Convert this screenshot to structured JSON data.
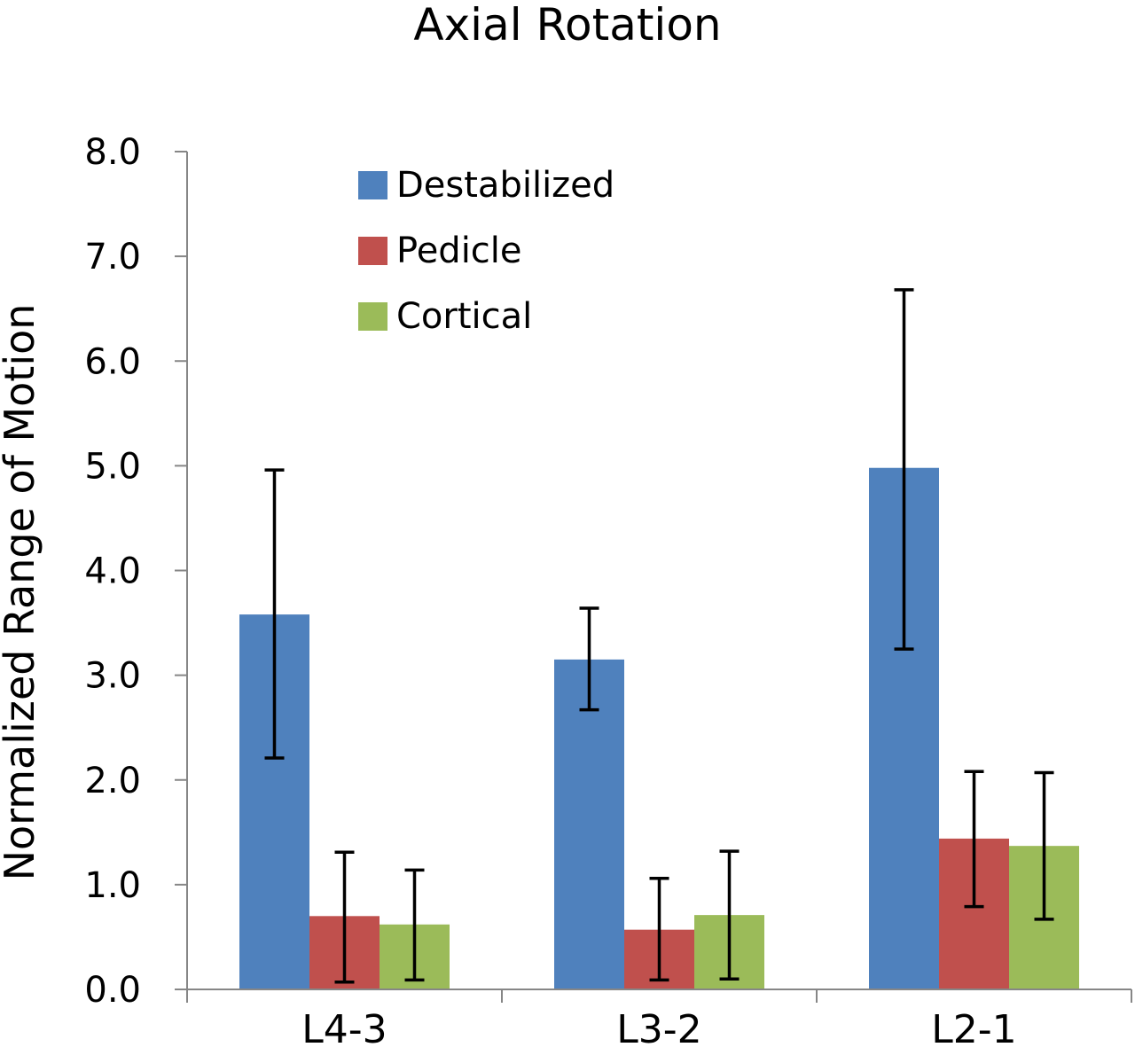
{
  "chart_data": {
    "type": "bar",
    "title": "Axial Rotation",
    "xlabel": "",
    "ylabel": "Normalized Range of Motion",
    "ylim": [
      0,
      8
    ],
    "yticks": [
      "0.0",
      "1.0",
      "2.0",
      "3.0",
      "4.0",
      "5.0",
      "6.0",
      "7.0",
      "8.0"
    ],
    "categories": [
      "L4-3",
      "L3-2",
      "L2-1"
    ],
    "series": [
      {
        "name": "Destabilized",
        "color": "#4F81BD",
        "values": [
          3.58,
          3.15,
          4.98
        ],
        "error_low": [
          2.21,
          2.67,
          3.25
        ],
        "error_high": [
          4.96,
          3.64,
          6.68
        ]
      },
      {
        "name": "Pedicle",
        "color": "#C0504D",
        "values": [
          0.7,
          0.57,
          1.44
        ],
        "error_low": [
          0.07,
          0.09,
          0.79
        ],
        "error_high": [
          1.31,
          1.06,
          2.08
        ]
      },
      {
        "name": "Cortical",
        "color": "#9BBB59",
        "values": [
          0.62,
          0.71,
          1.37
        ],
        "error_low": [
          0.09,
          0.1,
          0.67
        ],
        "error_high": [
          1.14,
          1.32,
          2.07
        ]
      }
    ],
    "grid": false,
    "legend_position": "top-left",
    "error_bars": true
  }
}
